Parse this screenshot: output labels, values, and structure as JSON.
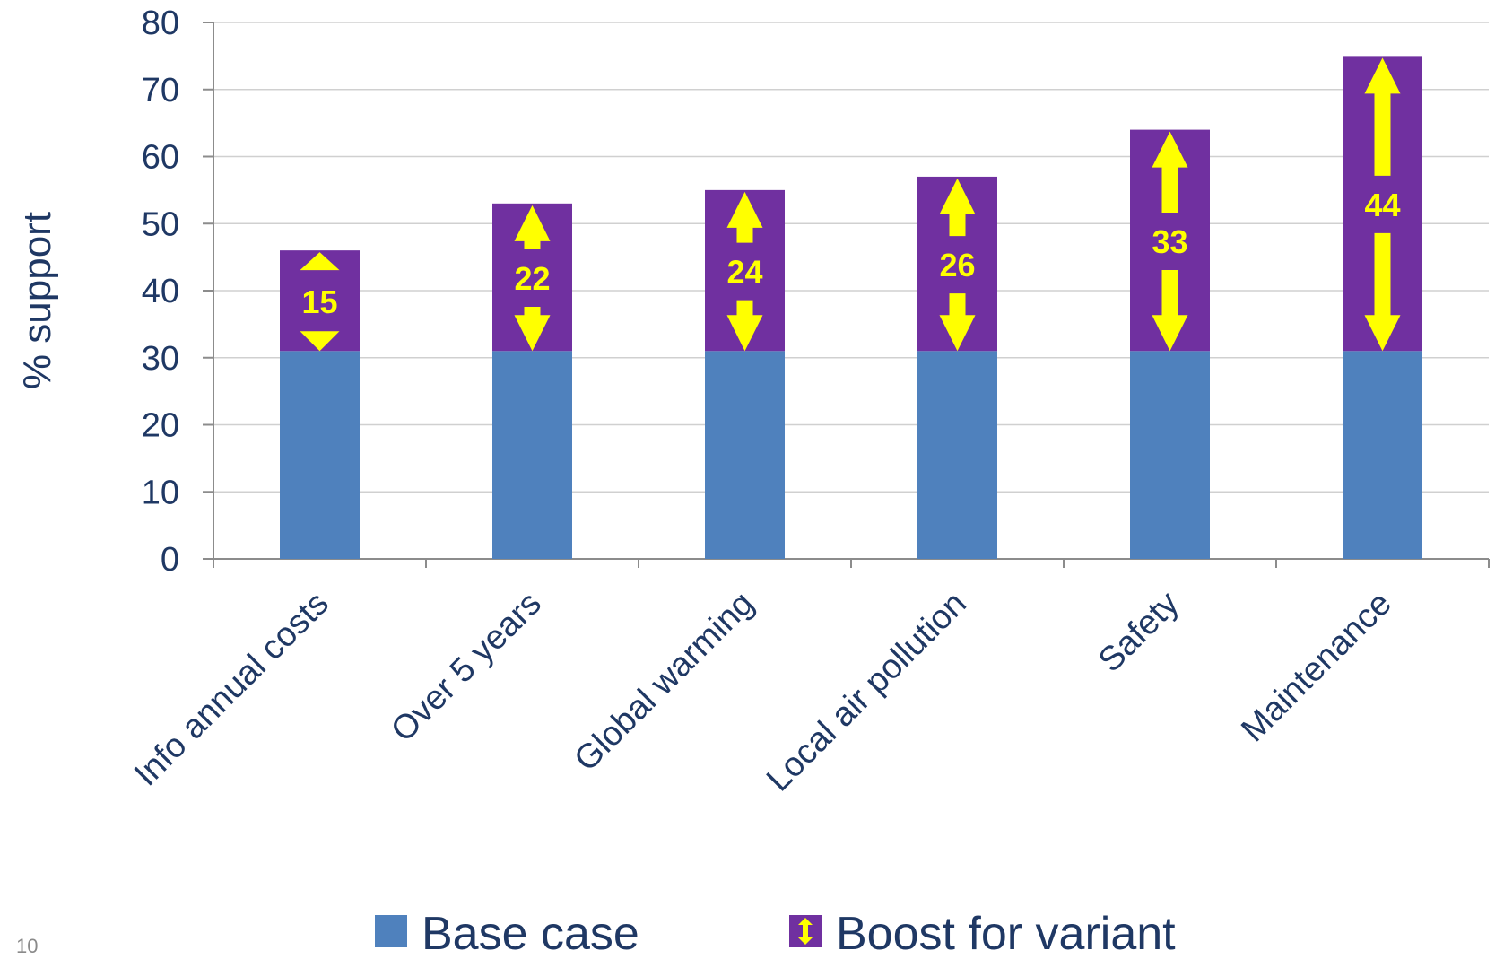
{
  "page_number": "10",
  "chart_data": {
    "type": "bar",
    "stacked": true,
    "categories": [
      "Info annual costs",
      "Over 5 years",
      "Global warming",
      "Local air pollution",
      "Safety",
      "Maintenance"
    ],
    "series": [
      {
        "name": "Base case",
        "color": "#4f81bd",
        "values": [
          31,
          31,
          31,
          31,
          31,
          31
        ]
      },
      {
        "name": "Boost for variant",
        "color": "#7030a0",
        "values": [
          15,
          22,
          24,
          26,
          33,
          44
        ]
      }
    ],
    "data_labels": [
      "15",
      "22",
      "24",
      "26",
      "33",
      "44"
    ],
    "arrow_color": "#ffff00",
    "ylabel": "% support",
    "ylim": [
      0,
      80
    ],
    "yticks": [
      0,
      10,
      20,
      30,
      40,
      50,
      60,
      70,
      80
    ],
    "grid": true,
    "legend": "bottom"
  }
}
